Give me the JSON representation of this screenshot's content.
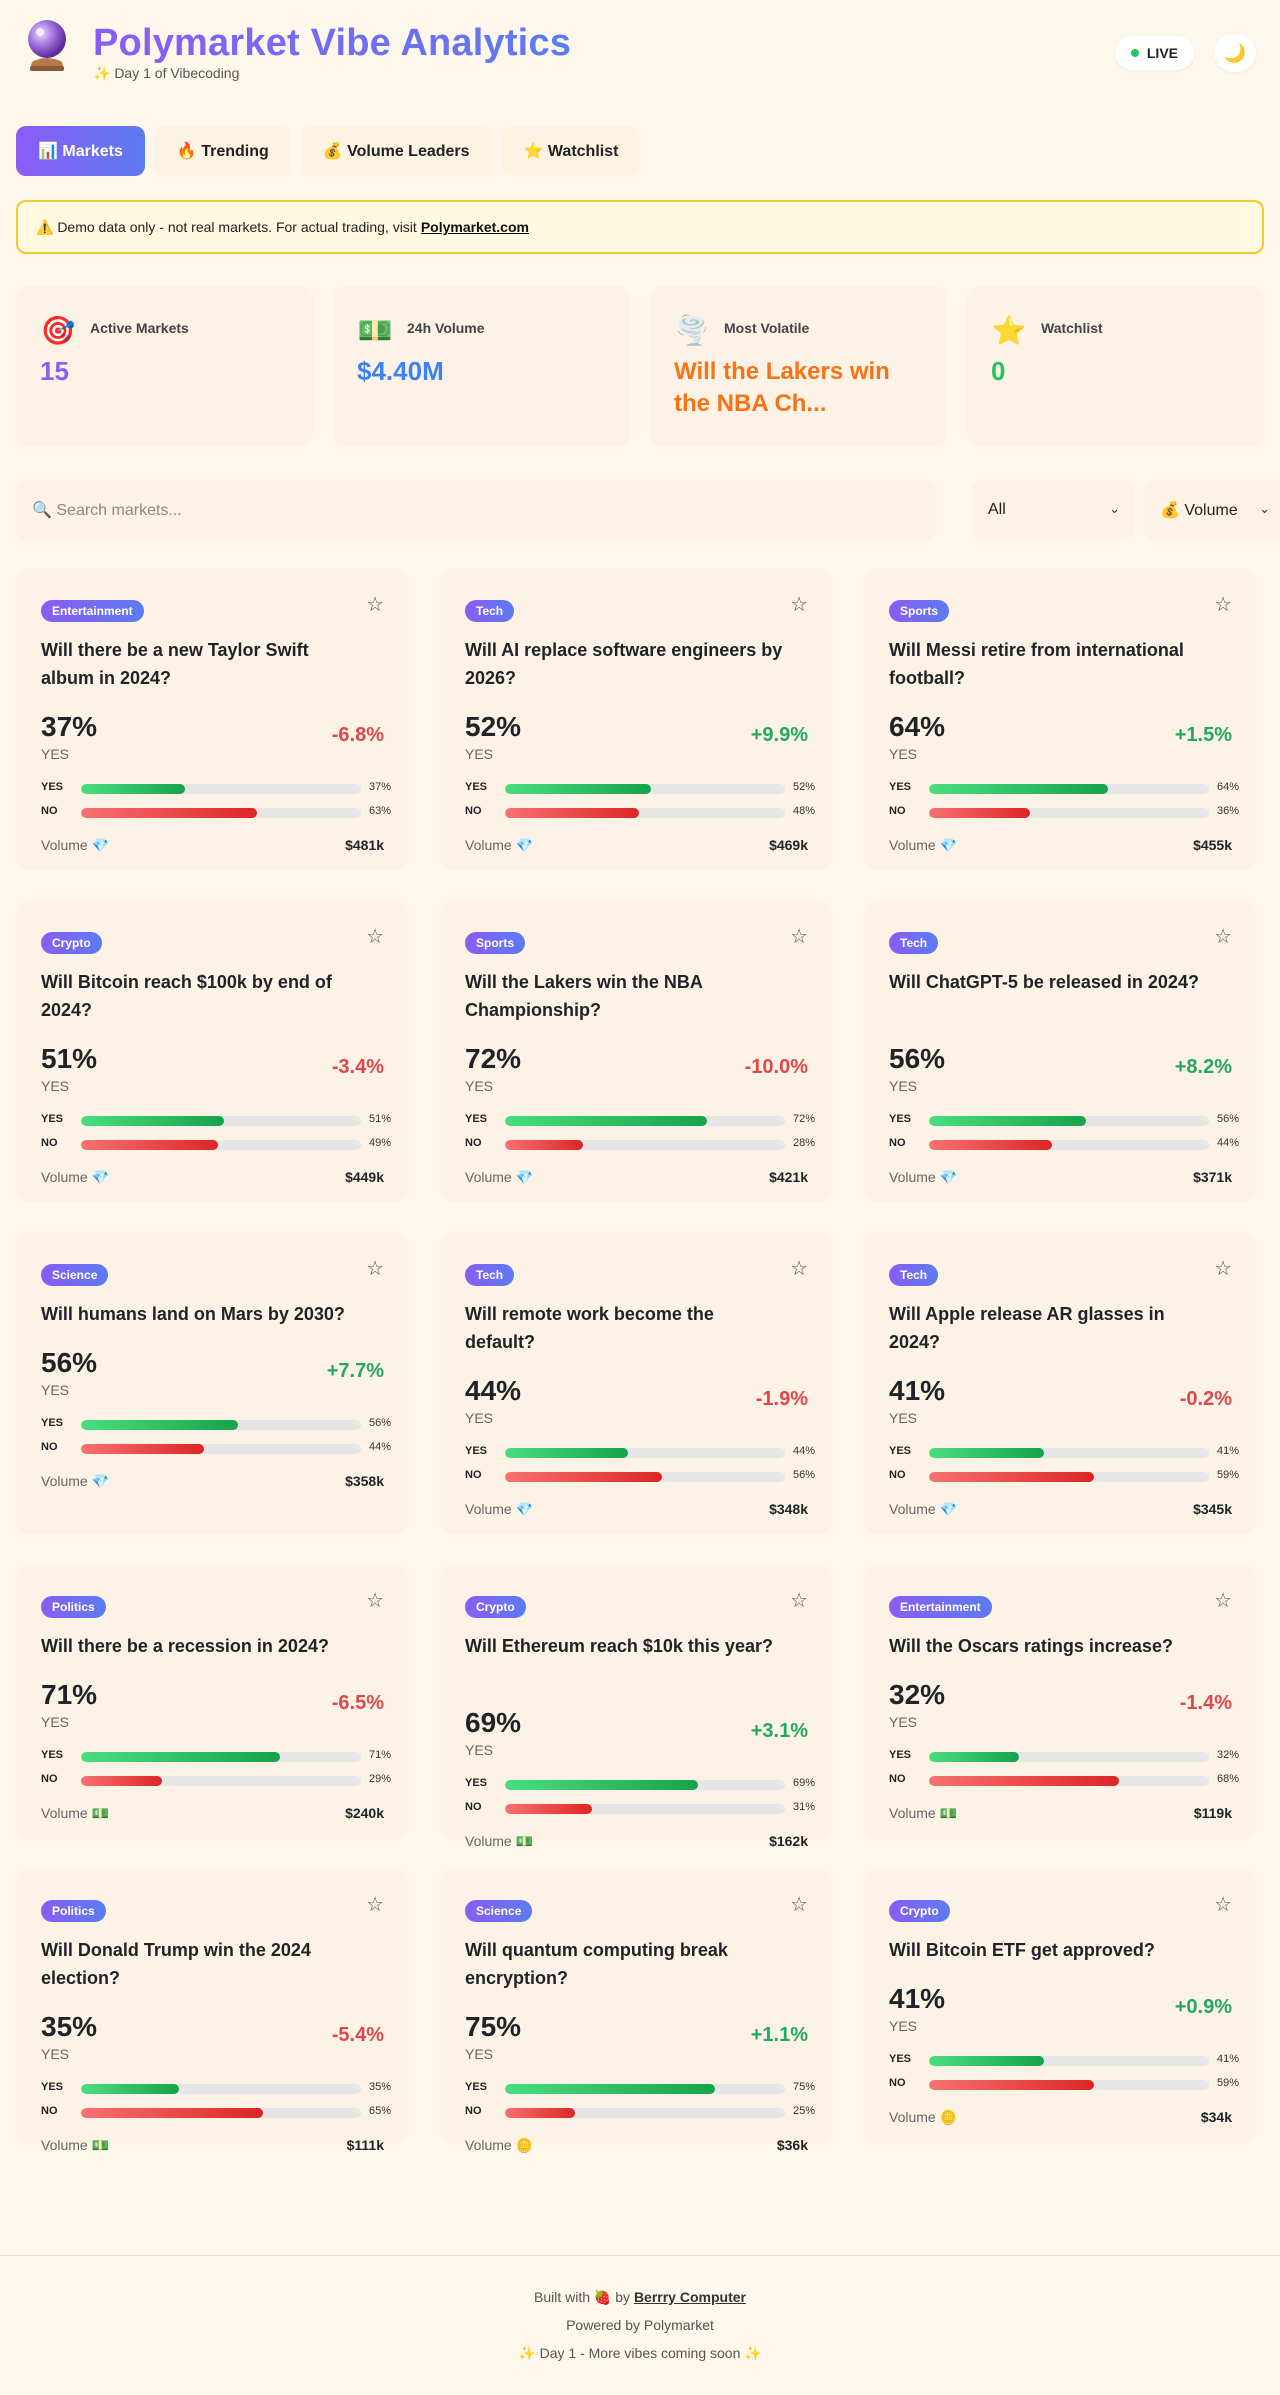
{
  "header": {
    "logo_icon": "crystal-ball",
    "title": "Polymarket Vibe Analytics",
    "subtitle": "✨ Day 1 of Vibecoding",
    "live_label": "LIVE",
    "theme_icon": "🌙"
  },
  "tabs": [
    {
      "label": "📊 Markets",
      "active": true
    },
    {
      "label": "🔥 Trending",
      "active": false
    },
    {
      "label": "💰 Volume Leaders",
      "active": false
    },
    {
      "label": "⭐ Watchlist",
      "active": false
    }
  ],
  "banner": {
    "text": "⚠️ Demo data only - not real markets. For actual trading, visit",
    "link": "Polymarket.com"
  },
  "stats": [
    {
      "icon": "🎯",
      "label": "Active Markets",
      "value": "15",
      "color": "#8b5cf6"
    },
    {
      "icon": "💵",
      "label": "24h Volume",
      "value": "$4.40M",
      "color": "#3b82f6"
    },
    {
      "icon": "🌪️",
      "label": "Most Volatile",
      "value": "Will the Lakers win the NBA Ch...",
      "color": "#f97316"
    },
    {
      "icon": "⭐",
      "label": "Watchlist",
      "value": "0",
      "color": "#22c55e"
    }
  ],
  "filters": {
    "search_placeholder": "🔍 Search markets...",
    "category": "All",
    "sort": "💰 Volume"
  },
  "markets": [
    {
      "category": "Entertainment",
      "question": "Will there be a new Taylor Swift album in 2024?",
      "yes": 37,
      "no": 63,
      "yes_pct": "37%",
      "no_pct": "63%",
      "change": "-6.8%",
      "dir": "down",
      "vol_label": "Volume 💎",
      "volume": "$481k"
    },
    {
      "category": "Tech",
      "question": "Will AI replace software engineers by 2026?",
      "yes": 52,
      "no": 48,
      "yes_pct": "52%",
      "no_pct": "48%",
      "change": "+9.9%",
      "dir": "up",
      "vol_label": "Volume 💎",
      "volume": "$469k"
    },
    {
      "category": "Sports",
      "question": "Will Messi retire from international football?",
      "yes": 64,
      "no": 36,
      "yes_pct": "64%",
      "no_pct": "36%",
      "change": "+1.5%",
      "dir": "up",
      "vol_label": "Volume 💎",
      "volume": "$455k"
    },
    {
      "category": "Crypto",
      "question": "Will Bitcoin reach $100k by end of 2024?",
      "yes": 51,
      "no": 49,
      "yes_pct": "51%",
      "no_pct": "49%",
      "change": "-3.4%",
      "dir": "down",
      "vol_label": "Volume 💎",
      "volume": "$449k"
    },
    {
      "category": "Sports",
      "question": "Will the Lakers win the NBA Championship?",
      "yes": 72,
      "no": 28,
      "yes_pct": "72%",
      "no_pct": "28%",
      "change": "-10.0%",
      "dir": "down",
      "vol_label": "Volume 💎",
      "volume": "$421k"
    },
    {
      "category": "Tech",
      "question": "Will ChatGPT-5 be released in 2024?",
      "yes": 56,
      "no": 44,
      "yes_pct": "56%",
      "no_pct": "44%",
      "change": "+8.2%",
      "dir": "up",
      "vol_label": "Volume 💎",
      "volume": "$371k"
    },
    {
      "category": "Science",
      "question": "Will humans land on Mars by 2030?",
      "yes": 56,
      "no": 44,
      "yes_pct": "56%",
      "no_pct": "44%",
      "change": "+7.7%",
      "dir": "up",
      "vol_label": "Volume 💎",
      "volume": "$358k"
    },
    {
      "category": "Tech",
      "question": "Will remote work become the default?",
      "yes": 44,
      "no": 56,
      "yes_pct": "44%",
      "no_pct": "56%",
      "change": "-1.9%",
      "dir": "down",
      "vol_label": "Volume 💎",
      "volume": "$348k"
    },
    {
      "category": "Tech",
      "question": "Will Apple release AR glasses in 2024?",
      "yes": 41,
      "no": 59,
      "yes_pct": "41%",
      "no_pct": "59%",
      "change": "-0.2%",
      "dir": "down",
      "vol_label": "Volume 💎",
      "volume": "$345k"
    },
    {
      "category": "Politics",
      "question": "Will there be a recession in 2024?",
      "yes": 71,
      "no": 29,
      "yes_pct": "71%",
      "no_pct": "29%",
      "change": "-6.5%",
      "dir": "down",
      "vol_label": "Volume 💵",
      "volume": "$240k"
    },
    {
      "category": "Crypto",
      "question": "Will Ethereum reach $10k this year?",
      "yes": 69,
      "no": 31,
      "yes_pct": "69%",
      "no_pct": "31%",
      "change": "+3.1%",
      "dir": "up",
      "vol_label": "Volume 💵",
      "volume": "$162k"
    },
    {
      "category": "Entertainment",
      "question": "Will the Oscars ratings increase?",
      "yes": 32,
      "no": 68,
      "yes_pct": "32%",
      "no_pct": "68%",
      "change": "-1.4%",
      "dir": "down",
      "vol_label": "Volume 💵",
      "volume": "$119k"
    },
    {
      "category": "Politics",
      "question": "Will Donald Trump win the 2024 election?",
      "yes": 35,
      "no": 65,
      "yes_pct": "35%",
      "no_pct": "65%",
      "change": "-5.4%",
      "dir": "down",
      "vol_label": "Volume 💵",
      "volume": "$111k"
    },
    {
      "category": "Science",
      "question": "Will quantum computing break encryption?",
      "yes": 75,
      "no": 25,
      "yes_pct": "75%",
      "no_pct": "25%",
      "change": "+1.1%",
      "dir": "up",
      "vol_label": "Volume 🪙",
      "volume": "$36k"
    },
    {
      "category": "Crypto",
      "question": "Will Bitcoin ETF get approved?",
      "yes": 41,
      "no": 59,
      "yes_pct": "41%",
      "no_pct": "59%",
      "change": "+0.9%",
      "dir": "up",
      "vol_label": "Volume 🪙",
      "volume": "$34k"
    }
  ],
  "card_labels": {
    "yes_word": "YES",
    "bar_yes": "YES",
    "bar_no": "NO",
    "star": "☆"
  },
  "footer": {
    "built_prefix": "Built with 🍓 by",
    "built_brand": "Berrry Computer",
    "powered": "Powered by Polymarket",
    "tagline": "✨ Day 1 - More vibes coming soon ✨"
  }
}
